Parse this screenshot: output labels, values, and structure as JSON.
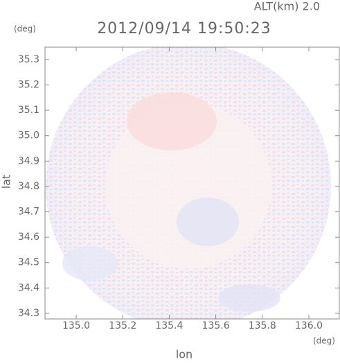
{
  "chart_data": {
    "type": "radar-field",
    "title": "2012/09/14 19:50:23",
    "annotation": "ALT(km) 2.0",
    "y_label": "lat",
    "y_unit": "(deg)",
    "x_label": "lon",
    "x_unit": "(deg)",
    "xlim": [
      134.866,
      136.131
    ],
    "ylim": [
      34.278,
      35.349
    ],
    "xticks": [
      {
        "value": 135,
        "label": "135.0"
      },
      135.2,
      135.4,
      135.6,
      135.8,
      {
        "value": 136,
        "label": "136.0"
      }
    ],
    "yticks": [
      34.3,
      34.4,
      34.5,
      34.6,
      34.7,
      34.8,
      34.9,
      {
        "value": 35,
        "label": "35.0"
      },
      35.1,
      35.2,
      35.3
    ]
  }
}
